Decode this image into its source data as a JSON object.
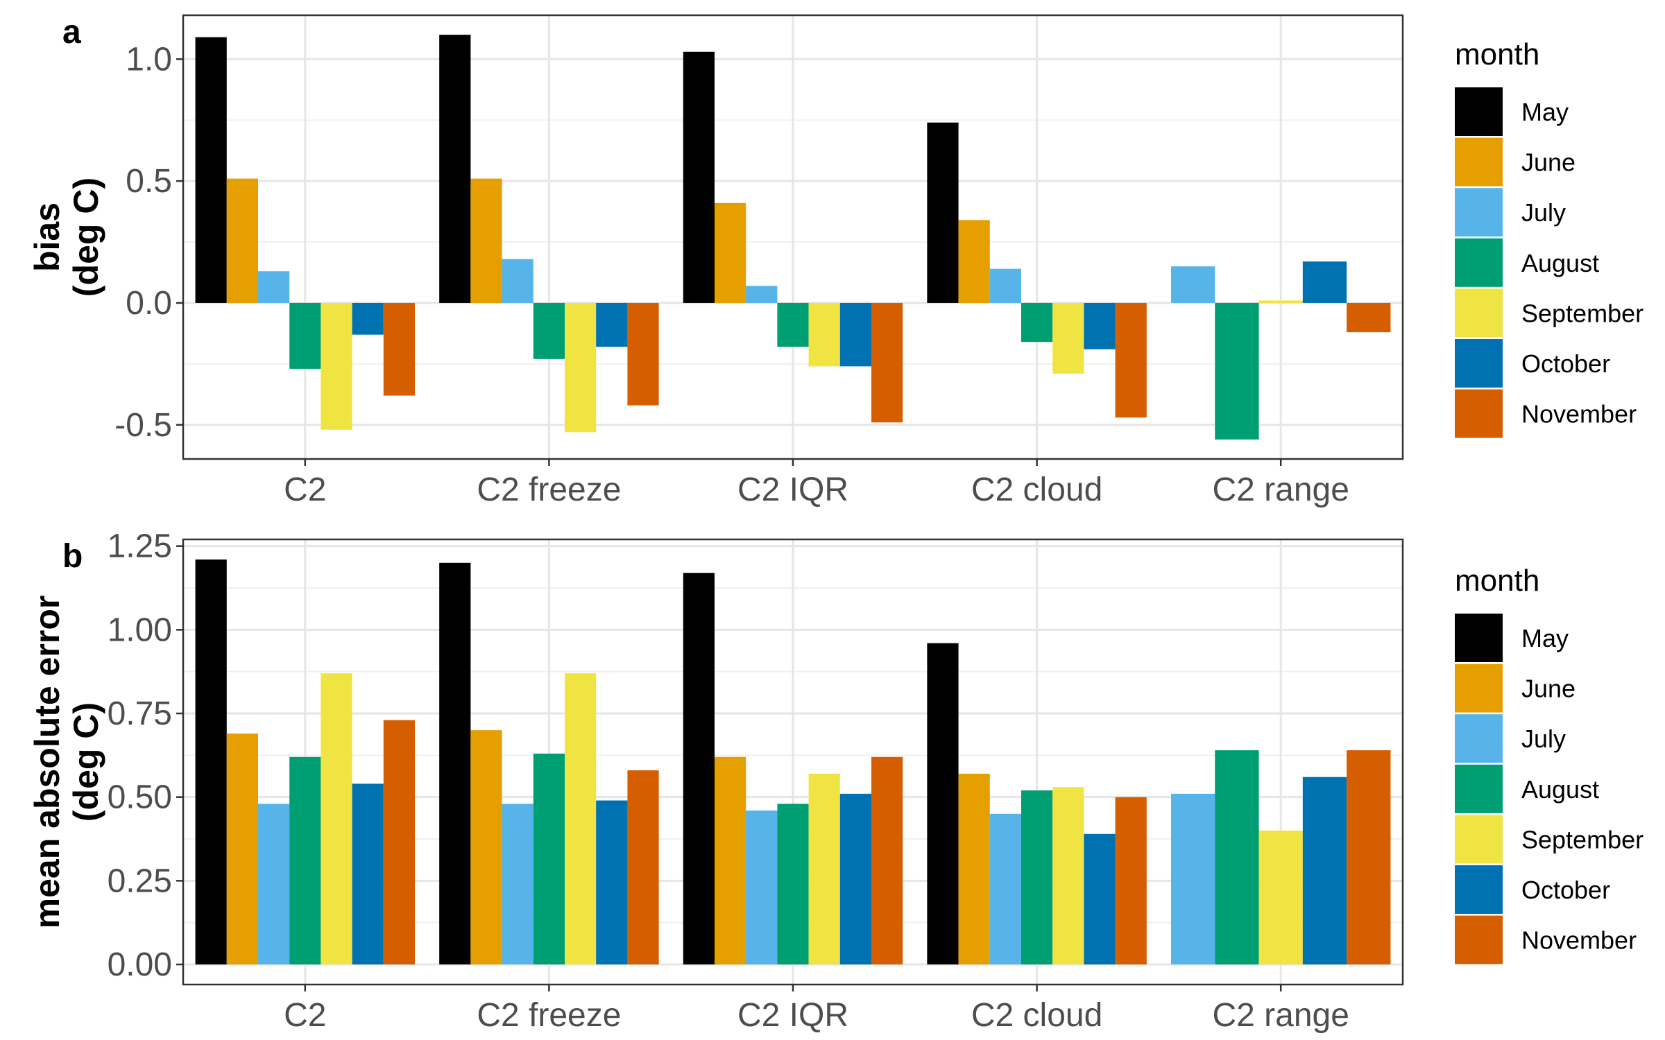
{
  "chart_data": [
    {
      "type": "bar",
      "panel_label": "a",
      "ylabel_lines": [
        "bias",
        "(deg C)"
      ],
      "categories": [
        "C2",
        "C2 freeze",
        "C2 IQR",
        "C2 cloud",
        "C2 range"
      ],
      "ylim": [
        -0.64,
        1.18
      ],
      "yticks": [
        -0.5,
        0.0,
        0.5,
        1.0
      ],
      "ytick_labels": [
        "-0.5",
        "0.0",
        "0.5",
        "1.0"
      ],
      "grid": true,
      "legend_position": "right",
      "legend_title": "month",
      "series": [
        {
          "name": "May",
          "color": "#000000",
          "values": [
            1.09,
            1.1,
            1.03,
            0.74,
            null
          ]
        },
        {
          "name": "June",
          "color": "#E69F00",
          "values": [
            0.51,
            0.51,
            0.41,
            0.34,
            null
          ]
        },
        {
          "name": "July",
          "color": "#56B4E9",
          "values": [
            0.13,
            0.18,
            0.07,
            0.14,
            0.15
          ]
        },
        {
          "name": "August",
          "color": "#009E73",
          "values": [
            -0.27,
            -0.23,
            -0.18,
            -0.16,
            -0.56
          ]
        },
        {
          "name": "September",
          "color": "#F0E442",
          "values": [
            -0.52,
            -0.53,
            -0.26,
            -0.29,
            0.01
          ]
        },
        {
          "name": "October",
          "color": "#0072B2",
          "values": [
            -0.13,
            -0.18,
            -0.26,
            -0.19,
            0.17
          ]
        },
        {
          "name": "November",
          "color": "#D55E00",
          "values": [
            -0.38,
            -0.42,
            -0.49,
            -0.47,
            -0.12
          ]
        }
      ]
    },
    {
      "type": "bar",
      "panel_label": "b",
      "ylabel_lines": [
        "mean absolute error",
        "(deg C)"
      ],
      "categories": [
        "C2",
        "C2 freeze",
        "C2 IQR",
        "C2 cloud",
        "C2 range"
      ],
      "ylim": [
        -0.06,
        1.27
      ],
      "yticks": [
        0.0,
        0.25,
        0.5,
        0.75,
        1.0,
        1.25
      ],
      "ytick_labels": [
        "0.00",
        "0.25",
        "0.50",
        "0.75",
        "1.00",
        "1.25"
      ],
      "grid": true,
      "legend_position": "right",
      "legend_title": "month",
      "series": [
        {
          "name": "May",
          "color": "#000000",
          "values": [
            1.21,
            1.2,
            1.17,
            0.96,
            null
          ]
        },
        {
          "name": "June",
          "color": "#E69F00",
          "values": [
            0.69,
            0.7,
            0.62,
            0.57,
            null
          ]
        },
        {
          "name": "July",
          "color": "#56B4E9",
          "values": [
            0.48,
            0.48,
            0.46,
            0.45,
            0.51
          ]
        },
        {
          "name": "August",
          "color": "#009E73",
          "values": [
            0.62,
            0.63,
            0.48,
            0.52,
            0.64
          ]
        },
        {
          "name": "September",
          "color": "#F0E442",
          "values": [
            0.87,
            0.87,
            0.57,
            0.53,
            0.4
          ]
        },
        {
          "name": "October",
          "color": "#0072B2",
          "values": [
            0.54,
            0.49,
            0.51,
            0.39,
            0.56
          ]
        },
        {
          "name": "November",
          "color": "#D55E00",
          "values": [
            0.73,
            0.58,
            0.62,
            0.5,
            0.64
          ]
        }
      ]
    }
  ]
}
